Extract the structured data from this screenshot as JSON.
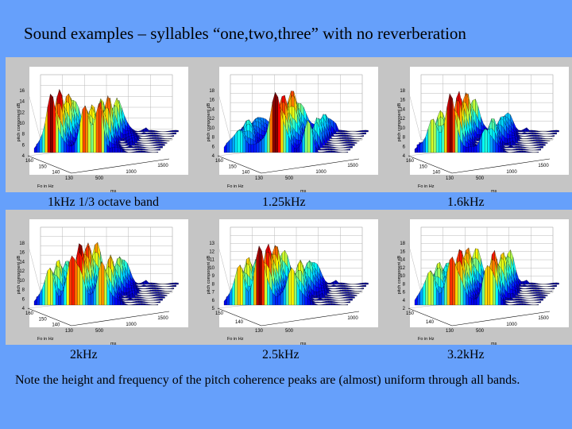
{
  "slide": {
    "title": "Sound examples – syllables “one,two,three” with no reverberation",
    "note": "Note the height and frequency of the pitch coherence peaks are (almost) uniform through all bands."
  },
  "panels": [
    {
      "caption": "1kHz 1/3 octave band",
      "zlabel": "pitch component dB",
      "ylabel": "Fo in Hz",
      "xlabel": "ms",
      "zticks": [
        "16",
        "14",
        "12",
        "10",
        "8",
        "6",
        "4"
      ],
      "yticks": [
        "160",
        "150",
        "140",
        "130"
      ],
      "xticks": [
        "500",
        "1000",
        "1500"
      ]
    },
    {
      "caption": "1.25kHz",
      "zlabel": "pitch component dB",
      "ylabel": "Fo in Hz",
      "xlabel": "ms",
      "zticks": [
        "18",
        "16",
        "14",
        "12",
        "10",
        "8",
        "6",
        "4"
      ],
      "yticks": [
        "160",
        "150",
        "140",
        "130"
      ],
      "xticks": [
        "500",
        "1000",
        "1500"
      ]
    },
    {
      "caption": "1.6kHz",
      "zlabel": "pitch component dB",
      "ylabel": "Fo in Hz",
      "xlabel": "ms",
      "zticks": [
        "18",
        "16",
        "14",
        "12",
        "10",
        "8",
        "6",
        "4"
      ],
      "yticks": [
        "160",
        "150",
        "140",
        "130"
      ],
      "xticks": [
        "500",
        "1000",
        "1500"
      ]
    },
    {
      "caption": "2kHz",
      "zlabel": "pitch component dB",
      "ylabel": "Fo in Hz",
      "xlabel": "ms",
      "zticks": [
        "18",
        "16",
        "14",
        "12",
        "10",
        "8",
        "6",
        "4"
      ],
      "yticks": [
        "160",
        "150",
        "140",
        "130"
      ],
      "xticks": [
        "500",
        "1000",
        "1500"
      ]
    },
    {
      "caption": "2.5kHz",
      "zlabel": "pitch component dB",
      "ylabel": "Fo in Hz",
      "xlabel": "ms",
      "zticks": [
        "13",
        "12",
        "11",
        "10",
        "9",
        "8",
        "7",
        "6",
        "5"
      ],
      "yticks": [
        "150",
        "140",
        "130"
      ],
      "xticks": [
        "500",
        "1000"
      ]
    },
    {
      "caption": "3.2kHz",
      "zlabel": "pitch component dB",
      "ylabel": "Fo in Hz",
      "xlabel": "ms",
      "zticks": [
        "18",
        "16",
        "14",
        "12",
        "10",
        "8",
        "6",
        "4",
        "2"
      ],
      "yticks": [
        "150",
        "140",
        "130"
      ],
      "xticks": [
        "500",
        "1000",
        "1500"
      ]
    }
  ],
  "colors": {
    "background": "#66a0fb",
    "panel": "#c5c5c5",
    "plot_area": "#ffffff"
  }
}
